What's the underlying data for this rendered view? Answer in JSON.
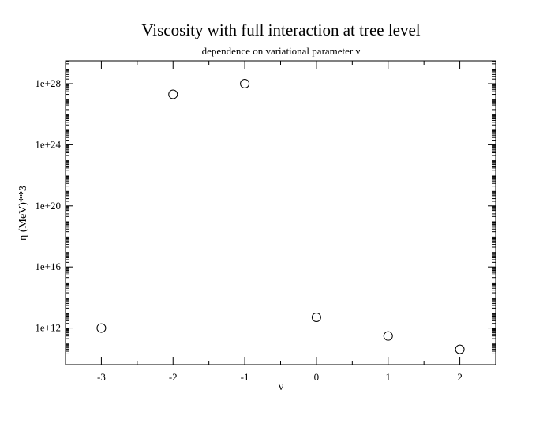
{
  "chart_data": {
    "type": "scatter",
    "title": "Viscosity  with full interaction at tree level",
    "subtitle": "dependence on variational parameter  ν",
    "xlabel": "ν",
    "ylabel": "η   (MeV)**3",
    "xlim": [
      -3.5,
      2.5
    ],
    "ylim_log10": [
      9.6,
      29.5
    ],
    "y_scale": "log",
    "grid": false,
    "x": [
      -3,
      -2,
      -1,
      0,
      1,
      2
    ],
    "y": [
      1000000000000.0,
      2e+27,
      1e+28,
      5000000000000.0,
      300000000000.0,
      40000000000.0
    ],
    "x_ticks": [
      -3,
      -2,
      -1,
      0,
      1,
      2
    ],
    "x_tick_labels": [
      "-3",
      "-2",
      "-1",
      "0",
      "1",
      "2"
    ],
    "y_ticks": [
      1000000000000.0,
      1e+16,
      1e+20,
      1e+24,
      1e+28
    ],
    "y_tick_labels": [
      "1e+12",
      "1e+16",
      "1e+20",
      "1e+24",
      "1e+28"
    ],
    "marker": "open-circle",
    "color": "#000000"
  }
}
